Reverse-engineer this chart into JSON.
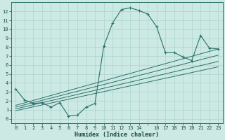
{
  "xlabel": "Humidex (Indice chaleur)",
  "bg_color": "#cce9e4",
  "line_color": "#2a7068",
  "grid_color": "#b0d8d0",
  "xlim": [
    -0.5,
    23.5
  ],
  "ylim": [
    -0.5,
    13.0
  ],
  "xtick_labels": [
    "0",
    "1",
    "2",
    "3",
    "4",
    "5",
    "6",
    "7",
    "8",
    "9",
    "10",
    "11",
    "12",
    "13",
    "14",
    "",
    "16",
    "17",
    "18",
    "19",
    "20",
    "21",
    "22",
    "23"
  ],
  "xtick_vals": [
    0,
    1,
    2,
    3,
    4,
    5,
    6,
    7,
    8,
    9,
    10,
    11,
    12,
    13,
    14,
    15,
    16,
    17,
    18,
    19,
    20,
    21,
    22,
    23
  ],
  "yticks": [
    0,
    1,
    2,
    3,
    4,
    5,
    6,
    7,
    8,
    9,
    10,
    11,
    12
  ],
  "series": [
    [
      0,
      3.3
    ],
    [
      1,
      2.1
    ],
    [
      2,
      1.7
    ],
    [
      3,
      1.8
    ],
    [
      4,
      1.3
    ],
    [
      5,
      1.8
    ],
    [
      6,
      0.3
    ],
    [
      7,
      0.4
    ],
    [
      8,
      1.3
    ],
    [
      9,
      1.7
    ],
    [
      10,
      8.1
    ],
    [
      11,
      10.7
    ],
    [
      12,
      12.2
    ],
    [
      13,
      12.4
    ],
    [
      14,
      12.1
    ],
    [
      15,
      11.7
    ],
    [
      16,
      10.3
    ],
    [
      17,
      7.4
    ],
    [
      18,
      7.4
    ],
    [
      19,
      6.9
    ],
    [
      20,
      6.5
    ],
    [
      21,
      9.3
    ],
    [
      22,
      7.9
    ],
    [
      23,
      7.8
    ]
  ],
  "trend_lines": [
    [
      [
        0,
        1.5
      ],
      [
        23,
        7.8
      ]
    ],
    [
      [
        0,
        1.3
      ],
      [
        23,
        7.1
      ]
    ],
    [
      [
        0,
        1.1
      ],
      [
        23,
        6.4
      ]
    ],
    [
      [
        0,
        0.9
      ],
      [
        23,
        5.8
      ]
    ]
  ]
}
